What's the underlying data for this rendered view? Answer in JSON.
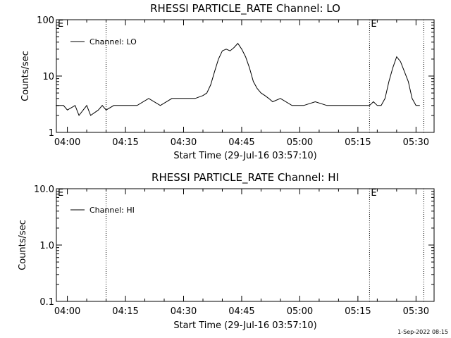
{
  "footer": {
    "date_stamp": "1-Sep-2022 08:15"
  },
  "chart_data": [
    {
      "type": "line",
      "title": "RHESSI PARTICLE_RATE Channel: LO",
      "xlabel": "Start Time (29-Jul-16 03:57:10)",
      "ylabel": "Counts/sec",
      "y_scale": "log",
      "ylim": [
        1,
        100
      ],
      "y_ticks": [
        "1",
        "10",
        "100"
      ],
      "x_ticks": [
        "04:00",
        "04:15",
        "04:30",
        "04:45",
        "05:00",
        "05:15",
        "05:30"
      ],
      "legend": {
        "label": "Channel: LO",
        "position": "top-left"
      },
      "event_markers": [
        {
          "time": "04:10",
          "label": ""
        },
        {
          "time": "05:18",
          "label": "E"
        },
        {
          "time": "05:32",
          "label": ""
        }
      ],
      "corner_label": "E",
      "series": [
        {
          "name": "Channel: LO",
          "x": [
            "03:57",
            "03:59",
            "04:00",
            "04:02",
            "04:03",
            "04:05",
            "04:06",
            "04:08",
            "04:09",
            "04:10",
            "04:12",
            "04:15",
            "04:18",
            "04:21",
            "04:24",
            "04:27",
            "04:30",
            "04:33",
            "04:35",
            "04:36",
            "04:37",
            "04:38",
            "04:39",
            "04:40",
            "04:41",
            "04:42",
            "04:43",
            "04:44",
            "04:45",
            "04:46",
            "04:47",
            "04:48",
            "04:49",
            "04:50",
            "04:51",
            "04:52",
            "04:53",
            "04:55",
            "04:58",
            "05:01",
            "05:04",
            "05:07",
            "05:10",
            "05:13",
            "05:16",
            "05:18",
            "05:19",
            "05:20",
            "05:21",
            "05:22",
            "05:23",
            "05:24",
            "05:25",
            "05:26",
            "05:27",
            "05:28",
            "05:29",
            "05:30",
            "05:31"
          ],
          "values": [
            3,
            3,
            2.5,
            3,
            2,
            3,
            2,
            2.5,
            3,
            2.5,
            3,
            3,
            3,
            4,
            3,
            4,
            4,
            4,
            4.5,
            5,
            7,
            12,
            20,
            28,
            30,
            28,
            32,
            38,
            30,
            22,
            14,
            8,
            6,
            5,
            4.5,
            4,
            3.5,
            4,
            3,
            3,
            3.5,
            3,
            3,
            3,
            3,
            3,
            3.5,
            3,
            3,
            4,
            8,
            14,
            22,
            18,
            12,
            8,
            4,
            3,
            3
          ]
        }
      ]
    },
    {
      "type": "line",
      "title": "RHESSI PARTICLE_RATE Channel: HI",
      "xlabel": "Start Time (29-Jul-16 03:57:10)",
      "ylabel": "Counts/sec",
      "y_scale": "log",
      "ylim": [
        0.1,
        10
      ],
      "y_ticks": [
        "0.1",
        "1.0",
        "10.0"
      ],
      "x_ticks": [
        "04:00",
        "04:15",
        "04:30",
        "04:45",
        "05:00",
        "05:15",
        "05:30"
      ],
      "legend": {
        "label": "Channel: HI",
        "position": "top-left"
      },
      "event_markers": [
        {
          "time": "04:10",
          "label": ""
        },
        {
          "time": "05:18",
          "label": "E"
        },
        {
          "time": "05:32",
          "label": ""
        }
      ],
      "corner_label": "E",
      "series": []
    }
  ]
}
